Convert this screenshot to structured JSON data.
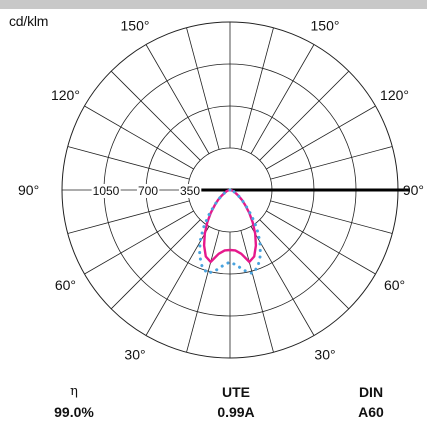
{
  "chart_data": {
    "type": "polar",
    "unit_label": "cd/klm",
    "angle_labels": [
      {
        "text": "150°",
        "angle": 150,
        "side": "left"
      },
      {
        "text": "150°",
        "angle": 150,
        "side": "right"
      },
      {
        "text": "120°",
        "angle": 120,
        "side": "left"
      },
      {
        "text": "120°",
        "angle": 120,
        "side": "right"
      },
      {
        "text": "90°",
        "angle": 90,
        "side": "left"
      },
      {
        "text": "90°",
        "angle": 90,
        "side": "right"
      },
      {
        "text": "60°",
        "angle": 60,
        "side": "left"
      },
      {
        "text": "60°",
        "angle": 60,
        "side": "right"
      },
      {
        "text": "30°",
        "angle": 30,
        "side": "left"
      },
      {
        "text": "30°",
        "angle": 30,
        "side": "right"
      }
    ],
    "radial_ticks": [
      {
        "label": "350",
        "value": 350
      },
      {
        "label": "700",
        "value": 700
      },
      {
        "label": "1050",
        "value": 1050
      }
    ],
    "r_max": 1400,
    "grid_step_deg": 15,
    "series": [
      {
        "style": "solid",
        "color": "#e6198c",
        "points": [
          [
            0,
            500
          ],
          [
            5,
            505
          ],
          [
            10,
            540
          ],
          [
            15,
            620
          ],
          [
            20,
            590
          ],
          [
            25,
            510
          ],
          [
            30,
            420
          ],
          [
            35,
            330
          ],
          [
            40,
            250
          ],
          [
            45,
            180
          ],
          [
            50,
            130
          ],
          [
            55,
            90
          ],
          [
            60,
            60
          ],
          [
            70,
            30
          ],
          [
            80,
            10
          ],
          [
            90,
            0
          ]
        ]
      },
      {
        "style": "dotted",
        "color": "#4aa3df",
        "points": [
          [
            0,
            600
          ],
          [
            5,
            630
          ],
          [
            10,
            680
          ],
          [
            15,
            720
          ],
          [
            20,
            680
          ],
          [
            25,
            600
          ],
          [
            30,
            500
          ],
          [
            35,
            390
          ],
          [
            40,
            280
          ],
          [
            45,
            190
          ],
          [
            50,
            130
          ],
          [
            55,
            90
          ],
          [
            60,
            60
          ],
          [
            70,
            30
          ],
          [
            80,
            10
          ],
          [
            90,
            0
          ]
        ]
      }
    ]
  },
  "stats": {
    "eta": {
      "label": "η",
      "value": "99.0%"
    },
    "ute": {
      "label": "UTE",
      "value": "0.99A"
    },
    "din": {
      "label": "DIN",
      "value": "A60"
    }
  },
  "colors": {
    "grid": "#222222",
    "axis": "#000000",
    "topbar": "#c8c8c8"
  }
}
